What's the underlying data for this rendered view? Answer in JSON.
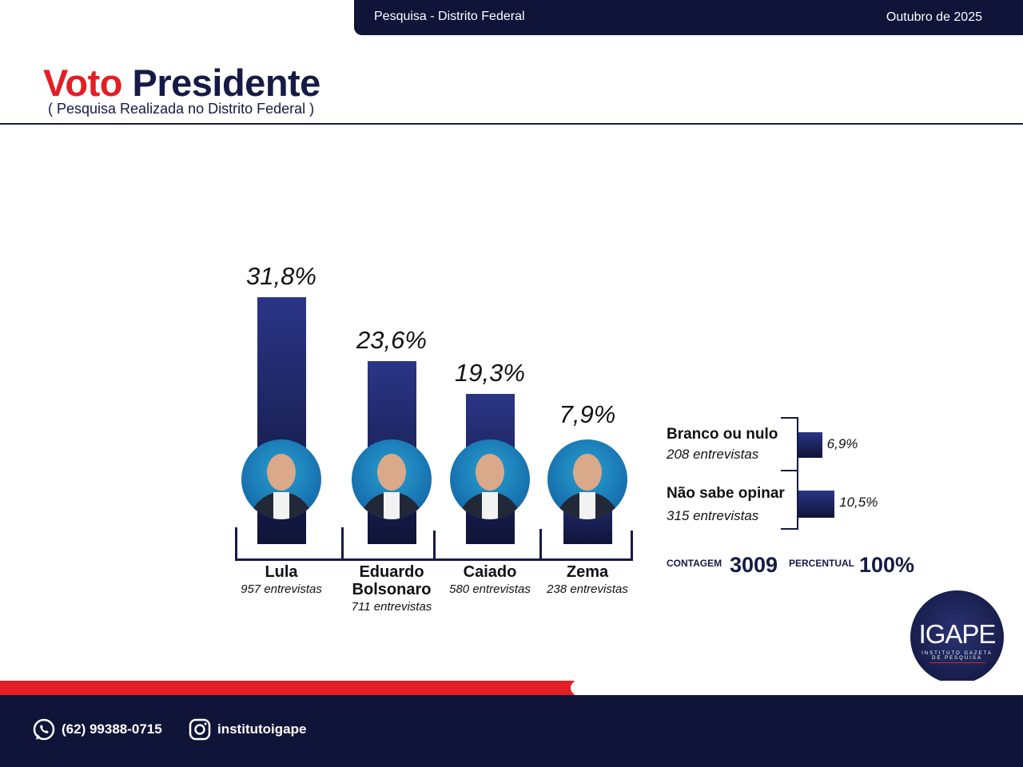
{
  "header": {
    "survey": "Pesquisa - Distrito Federal",
    "date": "Outubro de 2025"
  },
  "title": {
    "part1": "Voto",
    "part2": "Presidente",
    "subtitle": "( Pesquisa Realizada no Distrito Federal )"
  },
  "chart_data": {
    "type": "bar",
    "categories": [
      "Lula",
      "Eduardo Bolsonaro",
      "Caiado",
      "Zema"
    ],
    "values": [
      31.8,
      23.6,
      19.3,
      7.9
    ],
    "value_labels": [
      "31,8%",
      "23,6%",
      "19,3%",
      "7,9%"
    ],
    "counts": [
      "957 entrevistas",
      "711 entrevistas",
      "580 entrevistas",
      "238 entrevistas"
    ],
    "name_lines": [
      [
        "Lula"
      ],
      [
        "Eduardo",
        "Bolsonaro"
      ],
      [
        "Caiado"
      ],
      [
        "Zema"
      ]
    ],
    "bar_color": "#1f2766",
    "other": {
      "type": "bar-horizontal",
      "categories": [
        "Branco ou nulo",
        "Não sabe opinar"
      ],
      "values": [
        6.9,
        10.5
      ],
      "value_labels": [
        "6,9%",
        "10,5%"
      ],
      "counts": [
        "208 entrevistas",
        "315 entrevistas"
      ]
    }
  },
  "totals": {
    "count_label": "CONTAGEM",
    "count": "3009",
    "percent_label": "PERCENTUAL",
    "percent": "100%"
  },
  "logo": {
    "text": "IGAPE",
    "tagline1": "INSTITUTO GAZETA",
    "tagline2": "DE PESQUISA"
  },
  "footer": {
    "phone": "(62) 99388-0715",
    "instagram": "institutoigape"
  },
  "colors": {
    "navy": "#0f1438",
    "red": "#e31e24"
  }
}
